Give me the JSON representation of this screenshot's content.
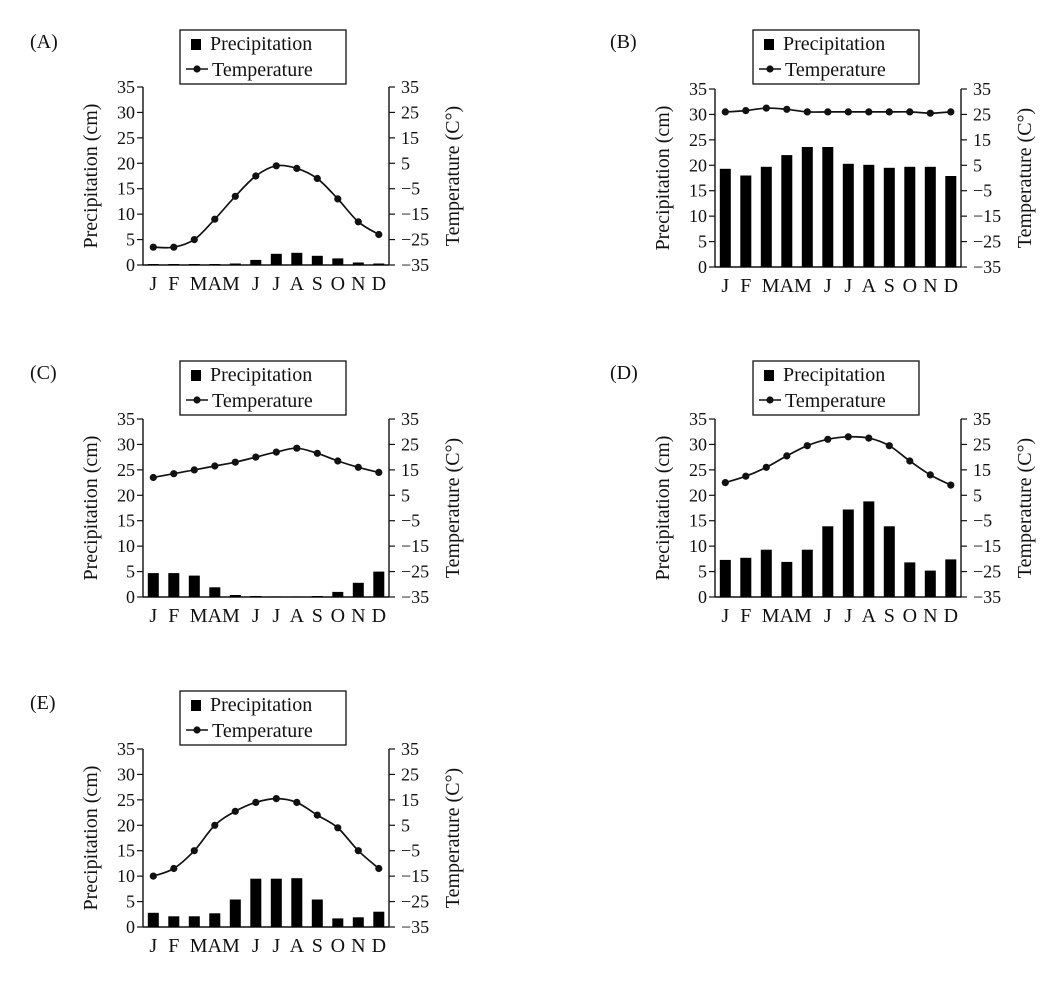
{
  "months": [
    "J",
    "F",
    "M",
    "A",
    "M",
    "J",
    "J",
    "A",
    "S",
    "O",
    "N",
    "D"
  ],
  "month_labels": [
    "J",
    "F",
    "MAM",
    "J",
    "J",
    "A",
    "S",
    "O",
    "N",
    "D"
  ],
  "legend": {
    "precipitation": "Precipitation",
    "temperature": "Temperature"
  },
  "axes": {
    "left_label": "Precipitation (cm)",
    "right_label": "Temperature (C°)",
    "left_ticks": [
      0,
      5,
      10,
      15,
      20,
      25,
      30,
      35
    ],
    "right_ticks": [
      -35,
      -25,
      -15,
      -5,
      5,
      15,
      25,
      35
    ]
  },
  "chart_data": [
    {
      "label": "(A)",
      "type": "bar+line",
      "categories": [
        "J",
        "F",
        "M",
        "A",
        "M",
        "J",
        "J",
        "A",
        "S",
        "O",
        "N",
        "D"
      ],
      "ylim": [
        0,
        35
      ],
      "y2lim": [
        -35,
        35
      ],
      "series": [
        {
          "name": "Precipitation",
          "axis": "left",
          "values": [
            0.2,
            0.2,
            0.2,
            0.2,
            0.3,
            1.0,
            2.2,
            2.4,
            1.8,
            1.3,
            0.5,
            0.3
          ]
        },
        {
          "name": "Temperature",
          "axis": "right",
          "values": [
            -28,
            -28,
            -25,
            -17,
            -8,
            0,
            4,
            3,
            -1,
            -9,
            -18,
            -23
          ]
        }
      ]
    },
    {
      "label": "(B)",
      "type": "bar+line",
      "categories": [
        "J",
        "F",
        "M",
        "A",
        "M",
        "J",
        "J",
        "A",
        "S",
        "O",
        "N",
        "D"
      ],
      "ylim": [
        0,
        35
      ],
      "y2lim": [
        -35,
        35
      ],
      "series": [
        {
          "name": "Precipitation",
          "axis": "left",
          "values": [
            19.3,
            18,
            19.7,
            22,
            23.6,
            23.6,
            20.3,
            20.1,
            19.5,
            19.7,
            19.7,
            17.9
          ]
        },
        {
          "name": "Temperature",
          "axis": "right",
          "values": [
            26,
            26.5,
            27.5,
            27,
            26,
            26,
            26,
            26,
            26,
            26,
            25.5,
            26
          ]
        }
      ]
    },
    {
      "label": "(C)",
      "type": "bar+line",
      "categories": [
        "J",
        "F",
        "M",
        "A",
        "M",
        "J",
        "J",
        "A",
        "S",
        "O",
        "N",
        "D"
      ],
      "ylim": [
        0,
        35
      ],
      "y2lim": [
        -35,
        35
      ],
      "series": [
        {
          "name": "Precipitation",
          "axis": "left",
          "values": [
            4.7,
            4.7,
            4.2,
            1.9,
            0.4,
            0.2,
            0.1,
            0.1,
            0.2,
            1.0,
            2.8,
            5.0
          ]
        },
        {
          "name": "Temperature",
          "axis": "right",
          "values": [
            12,
            13.5,
            15,
            16.5,
            18,
            20,
            22,
            23.5,
            21.5,
            18.5,
            16,
            14
          ]
        }
      ]
    },
    {
      "label": "(D)",
      "type": "bar+line",
      "categories": [
        "J",
        "F",
        "M",
        "A",
        "M",
        "J",
        "J",
        "A",
        "S",
        "O",
        "N",
        "D"
      ],
      "ylim": [
        0,
        35
      ],
      "y2lim": [
        -35,
        35
      ],
      "series": [
        {
          "name": "Precipitation",
          "axis": "left",
          "values": [
            7.3,
            7.7,
            9.3,
            6.9,
            9.3,
            13.9,
            17.2,
            18.8,
            13.9,
            6.8,
            5.2,
            7.4
          ]
        },
        {
          "name": "Temperature",
          "axis": "right",
          "values": [
            10,
            12.5,
            16,
            20.5,
            24.5,
            27,
            28,
            27.5,
            24.5,
            18.5,
            13,
            9
          ]
        }
      ]
    },
    {
      "label": "(E)",
      "type": "bar+line",
      "categories": [
        "J",
        "F",
        "M",
        "A",
        "M",
        "J",
        "J",
        "A",
        "S",
        "O",
        "N",
        "D"
      ],
      "ylim": [
        0,
        35
      ],
      "y2lim": [
        -35,
        35
      ],
      "series": [
        {
          "name": "Precipitation",
          "axis": "left",
          "values": [
            2.8,
            2.1,
            2.1,
            2.7,
            5.4,
            9.5,
            9.5,
            9.6,
            5.4,
            1.7,
            1.9,
            3.0
          ]
        },
        {
          "name": "Temperature",
          "axis": "right",
          "values": [
            -15,
            -12,
            -5,
            5,
            10.5,
            14,
            15.5,
            14,
            9,
            4,
            -5,
            -12
          ]
        }
      ]
    }
  ],
  "style": {
    "ink": "#111111",
    "bar": "#000000",
    "background": "#ffffff"
  }
}
